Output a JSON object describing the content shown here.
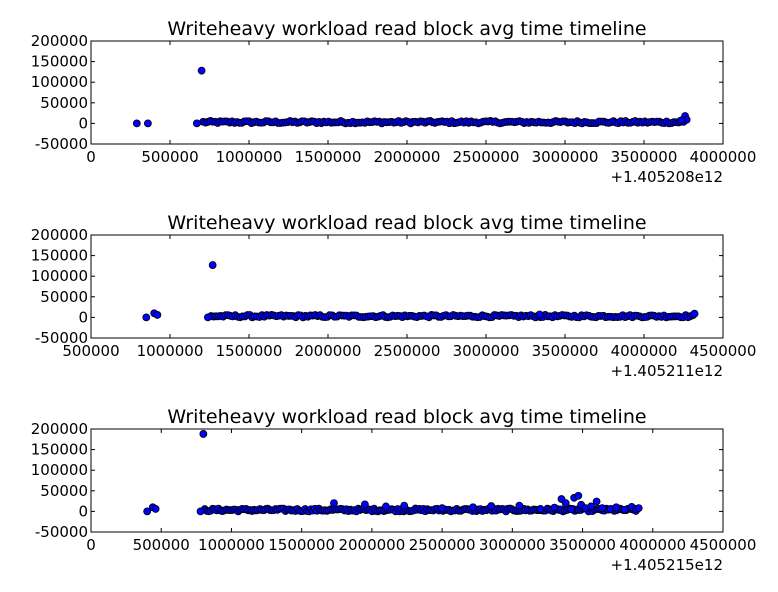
{
  "chart_data": [
    {
      "type": "scatter",
      "title": "Writeheavy workload read block avg time timeline",
      "xlabel": "",
      "ylabel": "",
      "x_offset_label": "+1.405208e12",
      "xlim": [
        0,
        4000000
      ],
      "ylim": [
        -50000,
        200000
      ],
      "xticks": [
        0,
        500000,
        1000000,
        1500000,
        2000000,
        2500000,
        3000000,
        3500000,
        4000000
      ],
      "yticks": [
        -50000,
        0,
        50000,
        100000,
        150000,
        200000
      ],
      "grid": false,
      "marker_color": "#0000ff",
      "points": [
        [
          290000,
          0
        ],
        [
          360000,
          0
        ],
        [
          700000,
          128000
        ],
        [
          670000,
          0
        ],
        [
          3760000,
          18000
        ],
        [
          3770000,
          9000
        ],
        [
          3730000,
          6000
        ],
        [
          3740000,
          8000
        ]
      ],
      "band": {
        "x_start": 710000,
        "x_end": 3750000,
        "y_low": 0,
        "y_high": 6000,
        "count": 200
      }
    },
    {
      "type": "scatter",
      "title": "Writeheavy workload read block avg time timeline",
      "xlabel": "",
      "ylabel": "",
      "x_offset_label": "+1.405211e12",
      "xlim": [
        500000,
        4500000
      ],
      "ylim": [
        -50000,
        200000
      ],
      "xticks": [
        500000,
        1000000,
        1500000,
        2000000,
        2500000,
        3000000,
        3500000,
        4000000,
        4500000
      ],
      "yticks": [
        -50000,
        0,
        50000,
        100000,
        150000,
        200000
      ],
      "grid": false,
      "marker_color": "#0000ff",
      "points": [
        [
          850000,
          0
        ],
        [
          900000,
          10000
        ],
        [
          920000,
          6000
        ],
        [
          1270000,
          127000
        ],
        [
          1240000,
          0
        ],
        [
          4320000,
          9000
        ],
        [
          3340000,
          7000
        ]
      ],
      "band": {
        "x_start": 1260000,
        "x_end": 4310000,
        "y_low": 0,
        "y_high": 6000,
        "count": 200
      }
    },
    {
      "type": "scatter",
      "title": "Writeheavy workload read block avg time timeline",
      "xlabel": "",
      "ylabel": "",
      "x_offset_label": "+1.405215e12",
      "xlim": [
        0,
        4500000
      ],
      "ylim": [
        -50000,
        200000
      ],
      "xticks": [
        0,
        500000,
        1000000,
        1500000,
        2000000,
        2500000,
        3000000,
        3500000,
        4000000,
        4500000
      ],
      "yticks": [
        -50000,
        0,
        50000,
        100000,
        150000,
        200000
      ],
      "grid": false,
      "marker_color": "#0000ff",
      "points": [
        [
          400000,
          0
        ],
        [
          440000,
          10000
        ],
        [
          460000,
          6000
        ],
        [
          800000,
          188000
        ],
        [
          780000,
          0
        ],
        [
          1730000,
          20000
        ],
        [
          1950000,
          17000
        ],
        [
          2100000,
          12000
        ],
        [
          2230000,
          14000
        ],
        [
          2500000,
          8000
        ],
        [
          2720000,
          10000
        ],
        [
          2850000,
          13000
        ],
        [
          3050000,
          14000
        ],
        [
          3200000,
          6000
        ],
        [
          3300000,
          9000
        ],
        [
          3350000,
          30000
        ],
        [
          3380000,
          20000
        ],
        [
          3420000,
          5000
        ],
        [
          3440000,
          33000
        ],
        [
          3470000,
          38000
        ],
        [
          3490000,
          16000
        ],
        [
          3520000,
          8000
        ],
        [
          3560000,
          12000
        ],
        [
          3600000,
          24000
        ],
        [
          3640000,
          8000
        ],
        [
          3700000,
          6000
        ],
        [
          3740000,
          10000
        ],
        [
          3800000,
          4000
        ],
        [
          3850000,
          11000
        ],
        [
          3880000,
          6000
        ],
        [
          3900000,
          8000
        ]
      ],
      "band": {
        "x_start": 810000,
        "x_end": 3880000,
        "y_low": 0,
        "y_high": 7000,
        "count": 220
      }
    }
  ]
}
